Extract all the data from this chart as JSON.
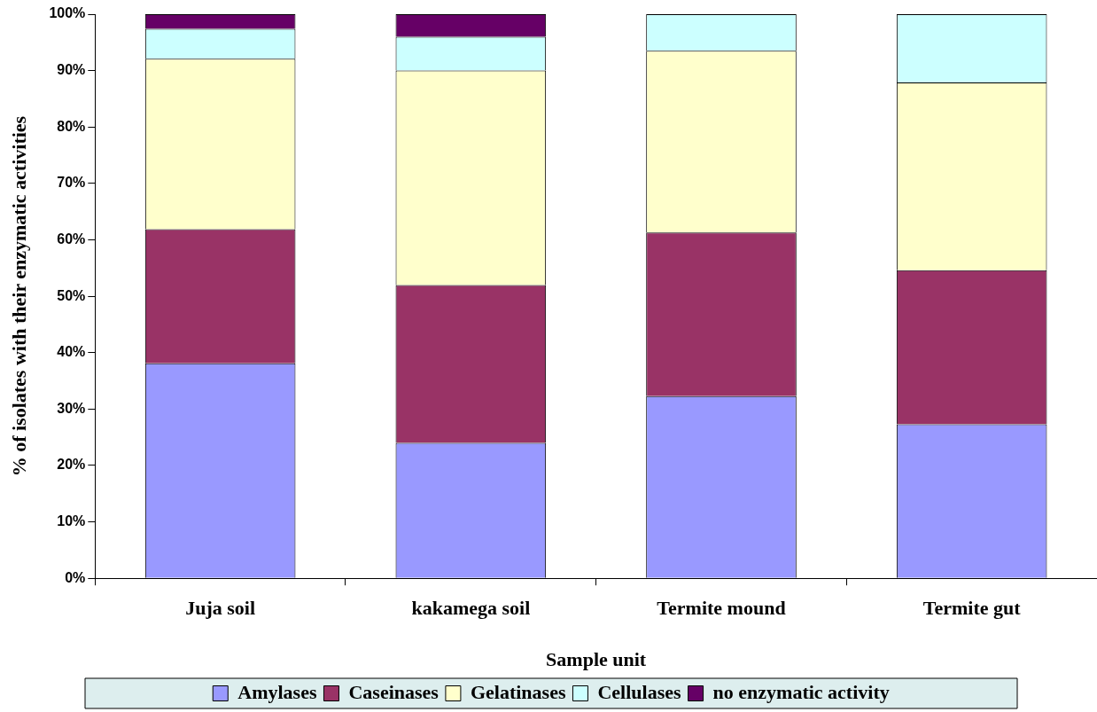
{
  "chart_data": {
    "type": "bar",
    "stacked": true,
    "xlabel": "Sample unit",
    "ylabel": "% of isolates with their enzymatic activities",
    "categories": [
      "Juja soil",
      "kakamega soil",
      "Termite mound",
      "Termite gut"
    ],
    "series": [
      {
        "name": "Amylases",
        "color": "#9999ff",
        "values": [
          38.1,
          24,
          32.3,
          27.3
        ]
      },
      {
        "name": "Caseinases",
        "color": "#993366",
        "values": [
          23.8,
          28,
          29,
          27.3
        ]
      },
      {
        "name": "Gelatinases",
        "color": "#ffffcc",
        "values": [
          30.2,
          38,
          32.2,
          33.3
        ]
      },
      {
        "name": "Cellulases",
        "color": "#ccffff",
        "values": [
          5.3,
          6,
          6.5,
          12.1
        ]
      },
      {
        "name": "no enzymatic activity",
        "color": "#660066",
        "values": [
          2.6,
          4,
          0,
          0
        ]
      }
    ],
    "ylim": [
      0,
      100
    ],
    "yticks": [
      {
        "value": 0,
        "label": "0%"
      },
      {
        "value": 10,
        "label": "10%"
      },
      {
        "value": 20,
        "label": "20%"
      },
      {
        "value": 30,
        "label": "30%"
      },
      {
        "value": 40,
        "label": "40%"
      },
      {
        "value": 50,
        "label": "50%"
      },
      {
        "value": 60,
        "label": "60%"
      },
      {
        "value": 70,
        "label": "70%"
      },
      {
        "value": 80,
        "label": "80%"
      },
      {
        "value": 90,
        "label": "90%"
      },
      {
        "value": 100,
        "label": "100%"
      }
    ],
    "grid": false,
    "legend": "bottom"
  }
}
